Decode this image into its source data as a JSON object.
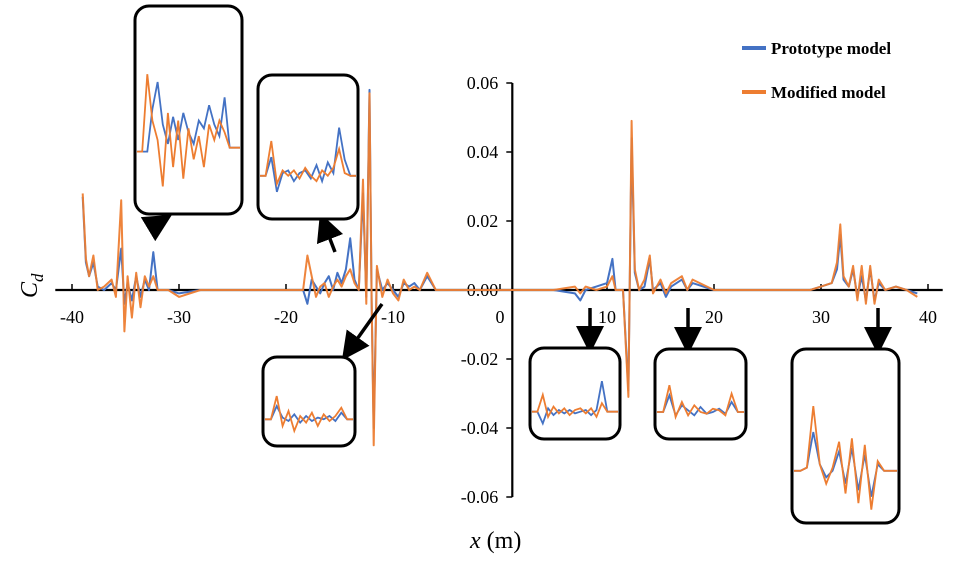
{
  "chart_data": {
    "type": "line",
    "title": "",
    "xlabel_var": "x",
    "xlabel_unit": " (m)",
    "ylabel_main": "C",
    "ylabel_sub": "d",
    "xlim": [
      -41,
      41
    ],
    "ylim": [
      -0.06,
      0.06
    ],
    "x_ticks": [
      -40,
      -30,
      -20,
      -10,
      0,
      10,
      20,
      30,
      40
    ],
    "x_tick_labels": [
      "-40",
      "-30",
      "-20",
      "-10",
      "0",
      "10",
      "20",
      "30",
      "40"
    ],
    "y_ticks": [
      -0.06,
      -0.04,
      -0.02,
      0.0,
      0.02,
      0.04,
      0.06
    ],
    "y_tick_labels": [
      "-0.06",
      "-0.04",
      "-0.02",
      "0.00",
      "0.02",
      "0.04",
      "0.06"
    ],
    "grid": false,
    "legend_position": "top-right",
    "series": [
      {
        "name": "Prototype model",
        "color": "#4472C4",
        "points": [
          [
            -39.0,
            0.027
          ],
          [
            -38.7,
            0.008
          ],
          [
            -38.4,
            0.004
          ],
          [
            -38.0,
            0.008
          ],
          [
            -37.6,
            0.001
          ],
          [
            -37.0,
            0.0
          ],
          [
            -36.3,
            0.002
          ],
          [
            -35.9,
            0.0
          ],
          [
            -35.4,
            0.012
          ],
          [
            -35.1,
            -0.004
          ],
          [
            -34.8,
            0.002
          ],
          [
            -34.4,
            -0.003
          ],
          [
            -34.0,
            0.004
          ],
          [
            -33.6,
            -0.002
          ],
          [
            -33.2,
            0.003
          ],
          [
            -32.8,
            0.0
          ],
          [
            -32.4,
            0.011
          ],
          [
            -32.0,
            0.0
          ],
          [
            -31.0,
            0.0
          ],
          [
            -30.0,
            -0.001
          ],
          [
            -28.0,
            0.0
          ],
          [
            -24.0,
            0.0
          ],
          [
            -20.0,
            0.0
          ],
          [
            -18.4,
            0.0
          ],
          [
            -18.0,
            -0.004
          ],
          [
            -17.6,
            0.003
          ],
          [
            -17.2,
            0.001
          ],
          [
            -16.8,
            -0.001
          ],
          [
            -16.4,
            0.002
          ],
          [
            -16.0,
            0.004
          ],
          [
            -15.6,
            0.0
          ],
          [
            -15.2,
            0.005
          ],
          [
            -14.8,
            0.002
          ],
          [
            -14.4,
            0.006
          ],
          [
            -14.0,
            0.015
          ],
          [
            -13.6,
            0.003
          ],
          [
            -13.2,
            0.0
          ],
          [
            -12.8,
            0.028
          ],
          [
            -12.5,
            -0.002
          ],
          [
            -12.2,
            0.058
          ],
          [
            -12.0,
            -0.003
          ],
          [
            -11.8,
            -0.04
          ],
          [
            -11.5,
            0.006
          ],
          [
            -11.0,
            0.0
          ],
          [
            -10.5,
            0.002
          ],
          [
            -10.0,
            0.0
          ],
          [
            -9.5,
            -0.002
          ],
          [
            -9.0,
            0.002
          ],
          [
            -8.5,
            0.001
          ],
          [
            -8.0,
            0.002
          ],
          [
            -7.5,
            0.0
          ],
          [
            -6.8,
            0.004
          ],
          [
            -6.0,
            0.0
          ],
          [
            0.0,
            0.0
          ],
          [
            5.0,
            0.0
          ],
          [
            7.0,
            -0.001
          ],
          [
            7.5,
            -0.003
          ],
          [
            8.0,
            0.0
          ],
          [
            9.0,
            0.001
          ],
          [
            10.0,
            0.002
          ],
          [
            10.5,
            0.009
          ],
          [
            10.8,
            0.0
          ],
          [
            11.5,
            0.0
          ],
          [
            12.0,
            -0.029
          ],
          [
            12.3,
            0.044
          ],
          [
            12.6,
            0.005
          ],
          [
            13.0,
            0.0
          ],
          [
            13.5,
            0.001
          ],
          [
            14.0,
            0.009
          ],
          [
            14.3,
            0.0
          ],
          [
            15.0,
            0.002
          ],
          [
            15.5,
            -0.002
          ],
          [
            16.0,
            0.001
          ],
          [
            17.0,
            0.003
          ],
          [
            17.5,
            0.0
          ],
          [
            18.0,
            0.002
          ],
          [
            20.0,
            0.0
          ],
          [
            25.0,
            0.0
          ],
          [
            29.0,
            0.0
          ],
          [
            30.0,
            0.001
          ],
          [
            31.0,
            0.002
          ],
          [
            31.5,
            0.006
          ],
          [
            31.8,
            0.016
          ],
          [
            32.1,
            0.003
          ],
          [
            32.6,
            0.001
          ],
          [
            33.0,
            0.006
          ],
          [
            33.4,
            -0.002
          ],
          [
            33.8,
            0.004
          ],
          [
            34.2,
            -0.003
          ],
          [
            34.6,
            0.006
          ],
          [
            35.0,
            -0.003
          ],
          [
            35.4,
            0.002
          ],
          [
            36.0,
            0.0
          ],
          [
            37.0,
            0.001
          ],
          [
            38.0,
            0.0
          ],
          [
            39.0,
            -0.001
          ]
        ]
      },
      {
        "name": "Modified model",
        "color": "#ED7D31",
        "points": [
          [
            -39.0,
            0.028
          ],
          [
            -38.7,
            0.009
          ],
          [
            -38.4,
            0.004
          ],
          [
            -38.0,
            0.01
          ],
          [
            -37.6,
            0.0
          ],
          [
            -37.0,
            0.001
          ],
          [
            -36.3,
            0.003
          ],
          [
            -35.9,
            -0.002
          ],
          [
            -35.4,
            0.026
          ],
          [
            -35.1,
            -0.012
          ],
          [
            -34.8,
            0.004
          ],
          [
            -34.4,
            -0.008
          ],
          [
            -34.0,
            0.005
          ],
          [
            -33.6,
            -0.005
          ],
          [
            -33.2,
            0.004
          ],
          [
            -32.8,
            0.001
          ],
          [
            -32.4,
            0.004
          ],
          [
            -32.0,
            0.0
          ],
          [
            -31.0,
            0.0
          ],
          [
            -30.0,
            -0.002
          ],
          [
            -28.0,
            0.0
          ],
          [
            -24.0,
            0.0
          ],
          [
            -20.0,
            0.0
          ],
          [
            -18.4,
            0.0
          ],
          [
            -18.0,
            0.01
          ],
          [
            -17.6,
            0.004
          ],
          [
            -17.2,
            -0.002
          ],
          [
            -16.8,
            0.001
          ],
          [
            -16.4,
            0.002
          ],
          [
            -16.0,
            -0.002
          ],
          [
            -15.6,
            0.001
          ],
          [
            -15.2,
            0.003
          ],
          [
            -14.8,
            0.001
          ],
          [
            -14.4,
            0.004
          ],
          [
            -14.0,
            0.006
          ],
          [
            -13.6,
            0.002
          ],
          [
            -13.2,
            0.0
          ],
          [
            -12.8,
            0.032
          ],
          [
            -12.5,
            -0.004
          ],
          [
            -12.2,
            0.057
          ],
          [
            -12.0,
            -0.002
          ],
          [
            -11.8,
            -0.045
          ],
          [
            -11.5,
            0.007
          ],
          [
            -11.0,
            -0.002
          ],
          [
            -10.5,
            0.003
          ],
          [
            -10.0,
            -0.001
          ],
          [
            -9.5,
            -0.003
          ],
          [
            -9.0,
            0.003
          ],
          [
            -8.5,
            0.0
          ],
          [
            -8.0,
            0.001
          ],
          [
            -7.5,
            0.0
          ],
          [
            -6.8,
            0.005
          ],
          [
            -6.0,
            0.0
          ],
          [
            0.0,
            0.0
          ],
          [
            5.0,
            0.0
          ],
          [
            7.0,
            0.001
          ],
          [
            7.5,
            -0.001
          ],
          [
            8.0,
            0.001
          ],
          [
            9.0,
            0.0
          ],
          [
            10.0,
            0.001
          ],
          [
            10.5,
            0.004
          ],
          [
            10.8,
            0.0
          ],
          [
            11.5,
            0.0
          ],
          [
            12.0,
            -0.031
          ],
          [
            12.3,
            0.049
          ],
          [
            12.6,
            0.006
          ],
          [
            13.0,
            0.0
          ],
          [
            13.5,
            0.003
          ],
          [
            14.0,
            0.01
          ],
          [
            14.3,
            -0.001
          ],
          [
            15.0,
            0.003
          ],
          [
            15.5,
            -0.001
          ],
          [
            16.0,
            0.002
          ],
          [
            17.0,
            0.004
          ],
          [
            17.5,
            0.0
          ],
          [
            18.0,
            0.003
          ],
          [
            20.0,
            0.0
          ],
          [
            25.0,
            0.0
          ],
          [
            29.0,
            0.0
          ],
          [
            30.0,
            0.001
          ],
          [
            31.0,
            0.002
          ],
          [
            31.5,
            0.008
          ],
          [
            31.8,
            0.019
          ],
          [
            32.1,
            0.004
          ],
          [
            32.6,
            0.001
          ],
          [
            33.0,
            0.007
          ],
          [
            33.4,
            -0.003
          ],
          [
            33.8,
            0.007
          ],
          [
            34.2,
            -0.004
          ],
          [
            34.6,
            0.007
          ],
          [
            35.0,
            -0.004
          ],
          [
            35.4,
            0.003
          ],
          [
            36.0,
            0.0
          ],
          [
            37.0,
            0.001
          ],
          [
            38.0,
            0.0
          ],
          [
            39.0,
            -0.002
          ]
        ]
      }
    ],
    "insets": [
      {
        "name": "inset-a",
        "arrow_to": [
          -34.5,
          0.008
        ],
        "prototype": [
          0.0,
          0.0,
          0.0,
          0.55,
          0.9,
          0.35,
          0.1,
          0.45,
          0.15,
          0.5,
          0.25,
          0.1,
          0.4,
          0.3,
          0.6,
          0.35,
          0.2,
          0.7,
          0.05,
          0.05,
          0.05
        ],
        "modified": [
          0.0,
          0.0,
          1.0,
          0.4,
          0.15,
          -0.45,
          0.5,
          -0.2,
          0.4,
          -0.35,
          0.3,
          -0.1,
          0.2,
          -0.2,
          0.35,
          0.15,
          0.4,
          0.25,
          0.05,
          0.05,
          0.05
        ]
      },
      {
        "name": "inset-b",
        "arrow_to": [
          -15.0,
          0.009
        ],
        "prototype": [
          0.0,
          0.0,
          0.35,
          -0.3,
          0.05,
          0.1,
          -0.1,
          0.05,
          0.1,
          -0.05,
          0.2,
          -0.1,
          0.25,
          0.05,
          0.9,
          0.3,
          0.0,
          0.0
        ],
        "modified": [
          0.0,
          0.0,
          0.65,
          -0.15,
          0.1,
          0.0,
          0.1,
          -0.05,
          0.15,
          0.0,
          -0.1,
          0.1,
          0.0,
          0.15,
          0.5,
          0.05,
          0.0,
          0.0
        ]
      },
      {
        "name": "inset-c",
        "arrow_to": [
          -13.0,
          -0.015
        ],
        "prototype": [
          0.0,
          0.0,
          0.4,
          0.05,
          -0.05,
          0.15,
          -0.1,
          0.1,
          -0.05,
          0.05,
          0.0,
          0.1,
          -0.05,
          0.2,
          0.0,
          0.0
        ],
        "modified": [
          0.0,
          0.0,
          0.7,
          -0.2,
          0.25,
          -0.35,
          0.1,
          -0.1,
          0.2,
          -0.2,
          0.15,
          -0.05,
          0.1,
          0.35,
          0.0,
          0.0
        ]
      },
      {
        "name": "inset-d",
        "arrow_to": [
          7.5,
          -0.015
        ],
        "prototype": [
          0.0,
          0.0,
          -0.35,
          0.1,
          -0.1,
          0.05,
          -0.05,
          0.05,
          -0.05,
          0.0,
          0.05,
          -0.1,
          0.05,
          0.9,
          0.0,
          0.0,
          0.0
        ],
        "modified": [
          0.0,
          0.0,
          0.5,
          -0.15,
          0.15,
          -0.05,
          0.1,
          -0.1,
          0.05,
          0.1,
          -0.05,
          0.1,
          -0.15,
          0.25,
          0.0,
          0.0,
          0.0
        ]
      },
      {
        "name": "inset-e",
        "arrow_to": [
          17.0,
          -0.015
        ],
        "prototype": [
          0.0,
          0.0,
          0.5,
          -0.1,
          0.2,
          0.05,
          -0.1,
          0.15,
          -0.05,
          0.0,
          0.1,
          -0.05,
          0.3,
          0.0,
          0.0
        ],
        "modified": [
          0.0,
          0.0,
          0.8,
          -0.15,
          0.3,
          -0.1,
          0.2,
          0.0,
          -0.05,
          0.1,
          0.05,
          -0.1,
          0.55,
          0.0,
          0.0
        ]
      },
      {
        "name": "inset-f",
        "arrow_to": [
          33.0,
          -0.015
        ],
        "prototype": [
          0.0,
          0.0,
          0.05,
          0.6,
          0.1,
          -0.1,
          0.0,
          0.3,
          -0.2,
          0.35,
          -0.3,
          0.25,
          -0.4,
          0.1,
          0.0,
          0.0,
          0.0
        ],
        "modified": [
          0.0,
          0.0,
          0.05,
          1.0,
          0.1,
          -0.2,
          0.05,
          0.45,
          -0.35,
          0.5,
          -0.5,
          0.4,
          -0.6,
          0.15,
          0.0,
          0.0,
          0.0
        ]
      }
    ]
  }
}
